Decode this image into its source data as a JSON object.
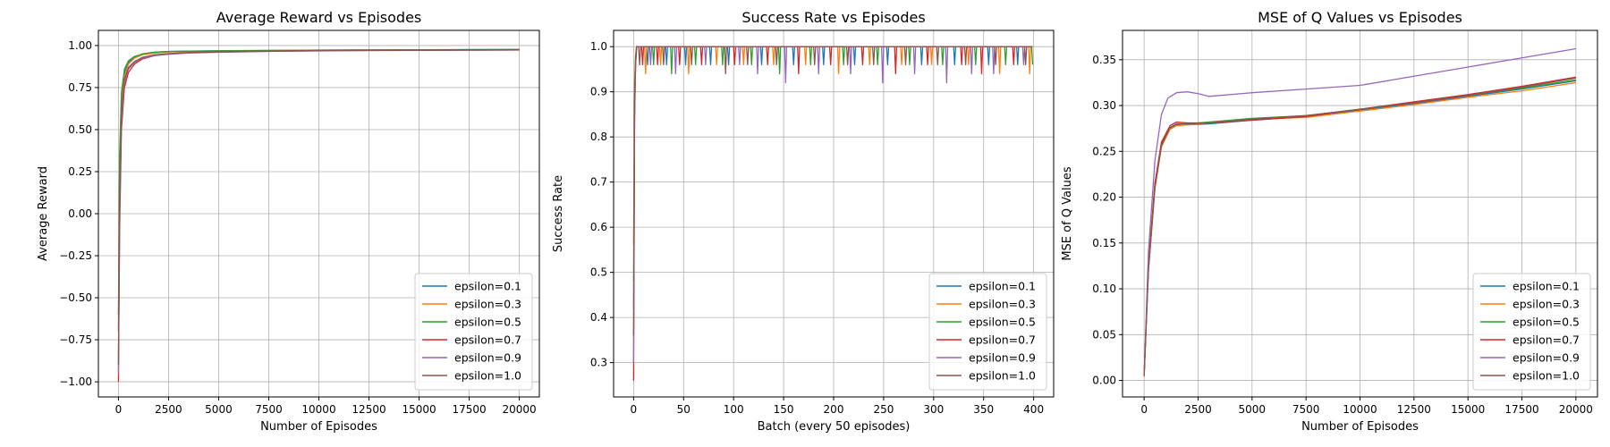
{
  "chart_data": [
    {
      "type": "line",
      "title": "Average Reward vs Episodes",
      "xlabel": "Number of Episodes",
      "ylabel": "Average Reward",
      "xlim": [
        -1000,
        21000
      ],
      "ylim": [
        -1.09,
        1.09
      ],
      "xticks": [
        0,
        2500,
        5000,
        7500,
        10000,
        12500,
        15000,
        17500,
        20000
      ],
      "xtick_labels": [
        "0",
        "2500",
        "5000",
        "7500",
        "10000",
        "12500",
        "15000",
        "17500",
        "20000"
      ],
      "yticks": [
        -1.0,
        -0.75,
        -0.5,
        -0.25,
        0.0,
        0.25,
        0.5,
        0.75,
        1.0
      ],
      "ytick_labels": [
        "−1.00",
        "−0.75",
        "−0.50",
        "−0.25",
        "0.00",
        "0.25",
        "0.50",
        "0.75",
        "1.00"
      ],
      "grid": true,
      "legend": "lower-right",
      "series": [
        {
          "name": "epsilon=0.1",
          "color": "#1f77b4",
          "x": [
            0,
            60,
            150,
            300,
            500,
            800,
            1200,
            1800,
            2500,
            3500,
            5000,
            7500,
            10000,
            12500,
            15000,
            17500,
            20000
          ],
          "y": [
            -0.6,
            0.3,
            0.7,
            0.84,
            0.9,
            0.93,
            0.95,
            0.96,
            0.965,
            0.967,
            0.969,
            0.971,
            0.973,
            0.974,
            0.975,
            0.976,
            0.977
          ]
        },
        {
          "name": "epsilon=0.3",
          "color": "#ff7f0e",
          "x": [
            0,
            60,
            150,
            300,
            500,
            800,
            1200,
            1800,
            2500,
            3500,
            5000,
            7500,
            10000,
            12500,
            15000,
            17500,
            20000
          ],
          "y": [
            -0.85,
            0.2,
            0.65,
            0.82,
            0.89,
            0.925,
            0.945,
            0.955,
            0.962,
            0.965,
            0.968,
            0.97,
            0.972,
            0.973,
            0.974,
            0.975,
            0.976
          ]
        },
        {
          "name": "epsilon=0.5",
          "color": "#2ca02c",
          "x": [
            0,
            60,
            150,
            300,
            500,
            800,
            1200,
            1800,
            2500,
            3500,
            5000,
            7500,
            10000,
            12500,
            15000,
            17500,
            20000
          ],
          "y": [
            -0.7,
            0.35,
            0.72,
            0.86,
            0.91,
            0.935,
            0.95,
            0.96,
            0.964,
            0.966,
            0.968,
            0.97,
            0.972,
            0.973,
            0.974,
            0.975,
            0.976
          ]
        },
        {
          "name": "epsilon=0.7",
          "color": "#d62728",
          "x": [
            0,
            60,
            150,
            300,
            500,
            800,
            1200,
            1800,
            2500,
            3500,
            5000,
            7500,
            10000,
            12500,
            15000,
            17500,
            20000
          ],
          "y": [
            -1.0,
            -0.1,
            0.5,
            0.75,
            0.84,
            0.89,
            0.92,
            0.94,
            0.95,
            0.958,
            0.963,
            0.967,
            0.97,
            0.972,
            0.973,
            0.974,
            0.975
          ]
        },
        {
          "name": "epsilon=0.9",
          "color": "#9467bd",
          "x": [
            0,
            60,
            150,
            300,
            500,
            800,
            1200,
            1800,
            2500,
            3500,
            5000,
            7500,
            10000,
            12500,
            15000,
            17500,
            20000
          ],
          "y": [
            -0.95,
            0.0,
            0.55,
            0.78,
            0.86,
            0.9,
            0.925,
            0.94,
            0.948,
            0.955,
            0.96,
            0.965,
            0.968,
            0.97,
            0.971,
            0.972,
            0.973
          ]
        },
        {
          "name": "epsilon=1.0",
          "color": "#8c564b",
          "x": [
            0,
            60,
            150,
            300,
            500,
            800,
            1200,
            1800,
            2500,
            3500,
            5000,
            7500,
            10000,
            12500,
            15000,
            17500,
            20000
          ],
          "y": [
            -0.9,
            0.05,
            0.6,
            0.8,
            0.87,
            0.905,
            0.93,
            0.945,
            0.952,
            0.958,
            0.962,
            0.966,
            0.969,
            0.971,
            0.972,
            0.973,
            0.974
          ]
        }
      ]
    },
    {
      "type": "line",
      "title": "Success Rate vs Episodes",
      "xlabel": "Batch (every 50 episodes)",
      "ylabel": "Success Rate",
      "xlim": [
        -20,
        420
      ],
      "ylim": [
        0.224,
        1.036
      ],
      "xticks": [
        0,
        50,
        100,
        150,
        200,
        250,
        300,
        350,
        400
      ],
      "xtick_labels": [
        "0",
        "50",
        "100",
        "150",
        "200",
        "250",
        "300",
        "350",
        "400"
      ],
      "yticks": [
        0.3,
        0.4,
        0.5,
        0.6,
        0.7,
        0.8,
        0.9,
        1.0
      ],
      "ytick_labels": [
        "0.3",
        "0.4",
        "0.5",
        "0.6",
        "0.7",
        "0.8",
        "0.9",
        "1.0"
      ],
      "grid": true,
      "legend": "lower-right",
      "n_points": 400,
      "series": [
        {
          "name": "epsilon=0.1",
          "color": "#1f77b4",
          "start": [
            0.42,
            0.88,
            0.98
          ],
          "dips": [
            [
              14,
              0.96
            ],
            [
              33,
              0.96
            ],
            [
              52,
              0.96
            ],
            [
              77,
              0.96
            ],
            [
              95,
              0.96
            ],
            [
              128,
              0.96
            ],
            [
              160,
              0.96
            ],
            [
              190,
              0.96
            ],
            [
              221,
              0.96
            ],
            [
              254,
              0.96
            ],
            [
              288,
              0.96
            ],
            [
              321,
              0.96
            ],
            [
              355,
              0.96
            ],
            [
              384,
              0.96
            ]
          ]
        },
        {
          "name": "epsilon=0.3",
          "color": "#ff7f0e",
          "start": [
            0.56,
            0.92,
            0.98
          ],
          "dips": [
            [
              12,
              0.94
            ],
            [
              27,
              0.96
            ],
            [
              55,
              0.94
            ],
            [
              83,
              0.96
            ],
            [
              110,
              0.96
            ],
            [
              140,
              0.96
            ],
            [
              172,
              0.96
            ],
            [
              205,
              0.94
            ],
            [
              236,
              0.96
            ],
            [
              268,
              0.96
            ],
            [
              298,
              0.96
            ],
            [
              335,
              0.96
            ],
            [
              366,
              0.94
            ],
            [
              396,
              0.94
            ]
          ]
        },
        {
          "name": "epsilon=0.5",
          "color": "#2ca02c",
          "start": [
            0.48,
            0.9,
            0.98
          ],
          "dips": [
            [
              20,
              0.96
            ],
            [
              38,
              0.94
            ],
            [
              62,
              0.96
            ],
            [
              89,
              0.96
            ],
            [
              118,
              0.96
            ],
            [
              146,
              0.94
            ],
            [
              177,
              0.96
            ],
            [
              210,
              0.96
            ],
            [
              244,
              0.96
            ],
            [
              276,
              0.96
            ],
            [
              309,
              0.96
            ],
            [
              342,
              0.96
            ],
            [
              372,
              0.96
            ],
            [
              399,
              0.96
            ]
          ]
        },
        {
          "name": "epsilon=0.7",
          "color": "#d62728",
          "start": [
            0.26,
            0.84,
            0.96
          ],
          "dips": [
            [
              9,
              0.96
            ],
            [
              24,
              0.96
            ],
            [
              46,
              0.96
            ],
            [
              68,
              0.96
            ],
            [
              101,
              0.96
            ],
            [
              134,
              0.96
            ],
            [
              165,
              0.94
            ],
            [
              197,
              0.96
            ],
            [
              229,
              0.96
            ],
            [
              262,
              0.94
            ],
            [
              294,
              0.96
            ],
            [
              328,
              0.96
            ],
            [
              348,
              0.94
            ],
            [
              380,
              0.96
            ]
          ]
        },
        {
          "name": "epsilon=0.9",
          "color": "#9467bd",
          "start": [
            0.3,
            0.86,
            0.96
          ],
          "dips": [
            [
              17,
              0.96
            ],
            [
              42,
              0.94
            ],
            [
              72,
              0.96
            ],
            [
              106,
              0.96
            ],
            [
              124,
              0.94
            ],
            [
              152,
              0.92
            ],
            [
              185,
              0.94
            ],
            [
              217,
              0.94
            ],
            [
              249,
              0.92
            ],
            [
              281,
              0.94
            ],
            [
              313,
              0.92
            ],
            [
              338,
              0.94
            ],
            [
              360,
              0.94
            ],
            [
              390,
              0.96
            ]
          ]
        },
        {
          "name": "epsilon=1.0",
          "color": "#8c564b",
          "start": [
            0.36,
            0.88,
            0.96
          ],
          "dips": [
            [
              6,
              0.96
            ],
            [
              30,
              0.96
            ],
            [
              58,
              0.96
            ],
            [
              92,
              0.94
            ],
            [
              114,
              0.96
            ],
            [
              143,
              0.96
            ],
            [
              181,
              0.96
            ],
            [
              214,
              0.96
            ],
            [
              240,
              0.96
            ],
            [
              272,
              0.96
            ],
            [
              304,
              0.96
            ],
            [
              332,
              0.96
            ],
            [
              362,
              0.96
            ],
            [
              392,
              0.96
            ]
          ]
        }
      ]
    },
    {
      "type": "line",
      "title": "MSE of Q Values vs Episodes",
      "xlabel": "Number of Episodes",
      "ylabel": "MSE of Q Values",
      "xlim": [
        -1000,
        21000
      ],
      "ylim": [
        -0.018,
        0.382
      ],
      "xticks": [
        0,
        2500,
        5000,
        7500,
        10000,
        12500,
        15000,
        17500,
        20000
      ],
      "xtick_labels": [
        "0",
        "2500",
        "5000",
        "7500",
        "10000",
        "12500",
        "15000",
        "17500",
        "20000"
      ],
      "yticks": [
        0.0,
        0.05,
        0.1,
        0.15,
        0.2,
        0.25,
        0.3,
        0.35
      ],
      "ytick_labels": [
        "0.00",
        "0.05",
        "0.10",
        "0.15",
        "0.20",
        "0.25",
        "0.30",
        "0.35"
      ],
      "grid": true,
      "legend": "lower-right",
      "series": [
        {
          "name": "epsilon=0.1",
          "color": "#1f77b4",
          "x": [
            0,
            200,
            500,
            800,
            1200,
            1500,
            2000,
            3000,
            5000,
            7500,
            10000,
            12500,
            15000,
            17500,
            20000
          ],
          "y": [
            0.005,
            0.12,
            0.21,
            0.255,
            0.275,
            0.279,
            0.279,
            0.28,
            0.284,
            0.288,
            0.295,
            0.302,
            0.31,
            0.318,
            0.327
          ]
        },
        {
          "name": "epsilon=0.3",
          "color": "#ff7f0e",
          "x": [
            0,
            200,
            500,
            800,
            1200,
            1500,
            2000,
            3000,
            5000,
            7500,
            10000,
            12500,
            15000,
            17500,
            20000
          ],
          "y": [
            0.004,
            0.12,
            0.21,
            0.255,
            0.274,
            0.278,
            0.279,
            0.281,
            0.285,
            0.287,
            0.294,
            0.301,
            0.309,
            0.316,
            0.325
          ]
        },
        {
          "name": "epsilon=0.5",
          "color": "#2ca02c",
          "x": [
            0,
            200,
            500,
            800,
            1200,
            1500,
            2000,
            3000,
            5000,
            7500,
            10000,
            12500,
            15000,
            17500,
            20000
          ],
          "y": [
            0.005,
            0.125,
            0.215,
            0.258,
            0.276,
            0.28,
            0.28,
            0.282,
            0.286,
            0.289,
            0.296,
            0.303,
            0.311,
            0.319,
            0.328
          ]
        },
        {
          "name": "epsilon=0.7",
          "color": "#d62728",
          "x": [
            0,
            200,
            500,
            800,
            1200,
            1500,
            2000,
            3000,
            5000,
            7500,
            10000,
            12500,
            15000,
            17500,
            20000
          ],
          "y": [
            0.005,
            0.125,
            0.215,
            0.26,
            0.278,
            0.282,
            0.281,
            0.281,
            0.284,
            0.288,
            0.296,
            0.304,
            0.312,
            0.321,
            0.331
          ]
        },
        {
          "name": "epsilon=0.9",
          "color": "#9467bd",
          "x": [
            0,
            200,
            500,
            800,
            1100,
            1500,
            2000,
            2500,
            3000,
            5000,
            7500,
            10000,
            12500,
            15000,
            17500,
            20000
          ],
          "y": [
            0.006,
            0.14,
            0.24,
            0.29,
            0.308,
            0.314,
            0.315,
            0.313,
            0.31,
            0.314,
            0.318,
            0.322,
            0.332,
            0.342,
            0.352,
            0.362
          ]
        },
        {
          "name": "epsilon=1.0",
          "color": "#8c564b",
          "x": [
            0,
            200,
            500,
            800,
            1200,
            1500,
            2000,
            3000,
            5000,
            7500,
            10000,
            12500,
            15000,
            17500,
            20000
          ],
          "y": [
            0.005,
            0.12,
            0.21,
            0.256,
            0.276,
            0.28,
            0.28,
            0.281,
            0.285,
            0.289,
            0.296,
            0.303,
            0.311,
            0.32,
            0.33
          ]
        }
      ]
    }
  ]
}
